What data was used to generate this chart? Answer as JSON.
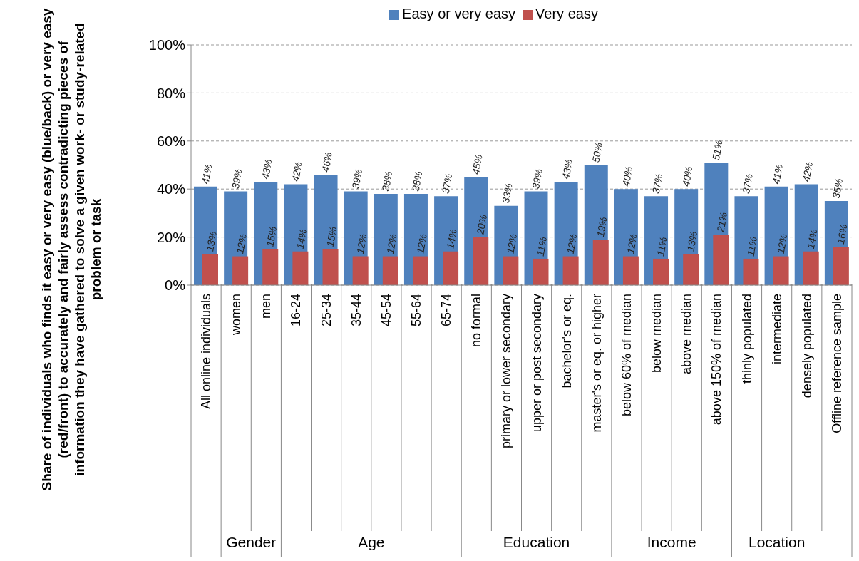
{
  "chart_data": {
    "type": "bar",
    "ylabel": "Share of individuals who finds it easy or very easy (blue/back) or very easy (red/front) to accurately and fairly assess contradicting pieces of information they have gathered to solve a given work- or study-related problem or task",
    "categories": [
      "All online individuals",
      "women",
      "men",
      "16-24",
      "25-34",
      "35-44",
      "45-54",
      "55-64",
      "65-74",
      "no formal",
      "primary or lower secondary",
      "upper or post secondary",
      "bachelor's or eq.",
      "master's or eq. or higher",
      "below 60% of median",
      "below median",
      "above median",
      "above 150% of median",
      "thinly populated",
      "intermediate",
      "densely populated",
      "Offline reference sample"
    ],
    "series": [
      {
        "name": "Easy or very easy",
        "color": "#4f81bd",
        "values": [
          41,
          39,
          43,
          42,
          46,
          39,
          38,
          38,
          37,
          45,
          33,
          39,
          43,
          50,
          40,
          37,
          40,
          51,
          37,
          41,
          42,
          35
        ],
        "value_labels": [
          "41%",
          "39%",
          "43%",
          "42%",
          "46%",
          "39%",
          "38%",
          "38%",
          "37%",
          "45%",
          "33%",
          "39%",
          "43%",
          "50%",
          "40%",
          "37%",
          "40%",
          "51%",
          "37%",
          "41%",
          "42%",
          "35%"
        ]
      },
      {
        "name": "Very easy",
        "color": "#c0504d",
        "values": [
          13,
          12,
          15,
          14,
          15,
          12,
          12,
          12,
          14,
          20,
          12,
          11,
          12,
          19,
          12,
          11,
          13,
          21,
          11,
          12,
          14,
          16
        ],
        "value_labels": [
          "13%",
          "12%",
          "15%",
          "14%",
          "15%",
          "12%",
          "12%",
          "12%",
          "14%",
          "20%",
          "12%",
          "11%",
          "12%",
          "19%",
          "12%",
          "11%",
          "13%",
          "21%",
          "11%",
          "12%",
          "14%",
          "16%"
        ]
      }
    ],
    "ylim": [
      0,
      100
    ],
    "yticks": [
      {
        "value": 0,
        "label": "0%"
      },
      {
        "value": 20,
        "label": "20%"
      },
      {
        "value": 40,
        "label": "40%"
      },
      {
        "value": 60,
        "label": "60%"
      },
      {
        "value": 80,
        "label": "80%"
      },
      {
        "value": 100,
        "label": "100%"
      }
    ],
    "grid": "y",
    "legend": "top",
    "annotations": [
      "Gender",
      "Age",
      "Education",
      "Income",
      "Location"
    ]
  }
}
